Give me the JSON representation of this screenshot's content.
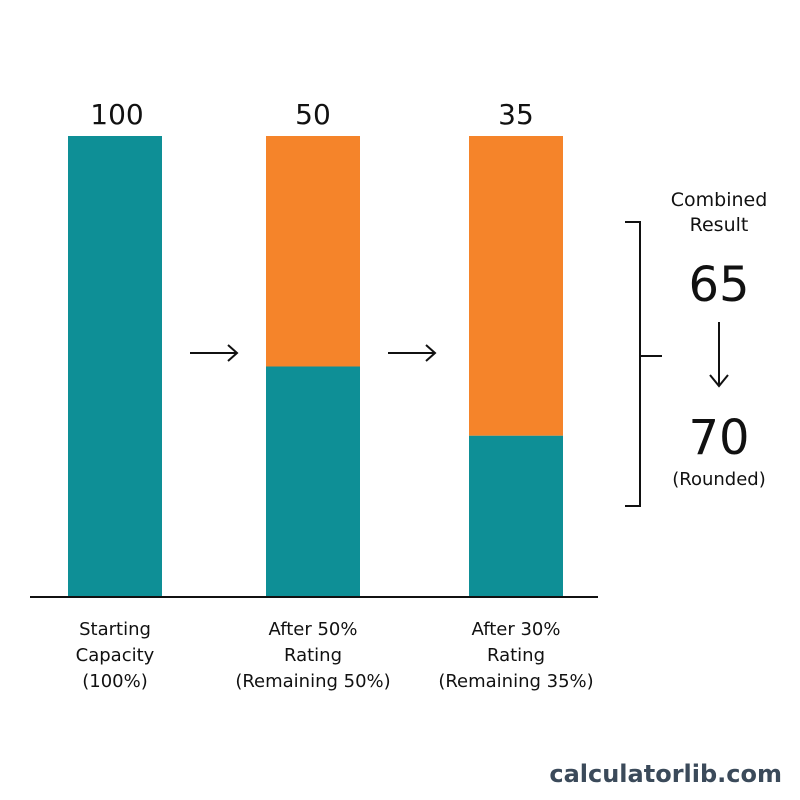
{
  "chart_data": {
    "type": "bar",
    "categories": [
      [
        "Starting",
        "Capacity",
        "(100%)"
      ],
      [
        "After 50%",
        "Rating",
        "(Remaining 50%)"
      ],
      [
        "After 30%",
        "Rating",
        "(Remaining 35%)"
      ]
    ],
    "series": [
      {
        "values": [
          100,
          50,
          35
        ],
        "color": "#0e8f96"
      },
      {
        "values": [
          0,
          50,
          65
        ],
        "color": "#f5842a"
      }
    ],
    "value_labels": [
      "100",
      "50",
      "35"
    ],
    "ylim": [
      0,
      100
    ],
    "grid": false,
    "legend": "none"
  },
  "combined": {
    "title_lines": [
      "Combined",
      "Result"
    ],
    "value": "65",
    "rounded_value": "70",
    "rounded_note": "(Rounded)"
  },
  "brand": {
    "text": "calculatorlib.com"
  },
  "colors": {
    "teal": "#0e8f96",
    "orange": "#f5842a",
    "ink": "#111111"
  },
  "icons": [
    "arrow-right-icon",
    "arrow-right-icon",
    "arrow-down-icon",
    "bracket-icon"
  ]
}
